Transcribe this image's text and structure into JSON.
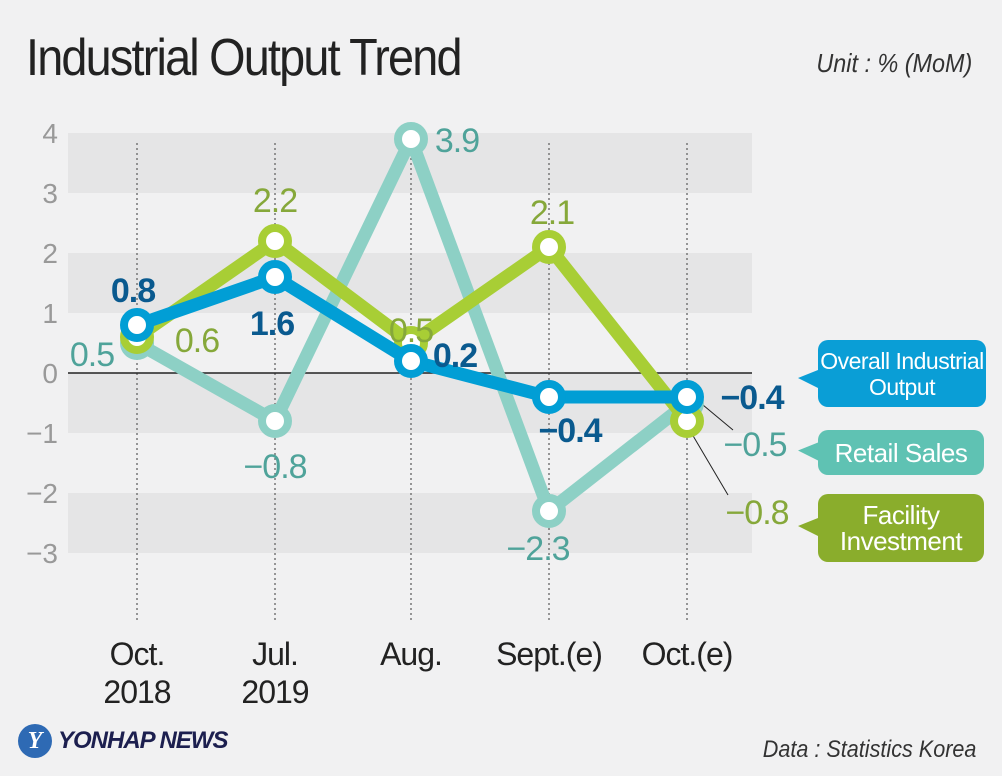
{
  "title": "Industrial Output Trend",
  "unit": "Unit : % (MoM)",
  "source": "Data : Statistics Korea",
  "logo": {
    "text": "YONHAP NEWS",
    "mark": "Y"
  },
  "chart_data": {
    "type": "line",
    "title": "Industrial Output Trend",
    "categories": [
      "Oct.\n2018",
      "Jul.\n2019",
      "Aug.",
      "Sept.(e)",
      "Oct.(e)"
    ],
    "ylim": [
      -3,
      4
    ],
    "yticks": [
      4,
      3,
      2,
      1,
      0,
      -1,
      -2,
      -3
    ],
    "ytick_labels": [
      "4",
      "3",
      "2",
      "1",
      "0",
      "−1",
      "−2",
      "−3"
    ],
    "grid": "alternating horizontal bands",
    "legend": "right (callouts)",
    "series": [
      {
        "name": "Retail Sales",
        "values": [
          0.5,
          -0.8,
          3.9,
          -2.3,
          -0.5
        ],
        "labels": [
          "0.5",
          "−0.8",
          "3.9",
          "−2.3",
          "−0.5"
        ],
        "color": "#8dd0c5",
        "label_color": "#4fa39a",
        "box_color": "#5fc2b3"
      },
      {
        "name": "Facility Investment",
        "values": [
          0.6,
          2.2,
          0.5,
          2.1,
          -0.8
        ],
        "labels": [
          "0.6",
          "2.2",
          "0.5",
          "2.1",
          "−0.8"
        ],
        "color": "#a8ce35",
        "label_color": "#86a83a",
        "box_color": "#8aad2c"
      },
      {
        "name": "Overall Industrial Output",
        "values": [
          0.8,
          1.6,
          0.2,
          -0.4,
          -0.4
        ],
        "labels": [
          "0.8",
          "1.6",
          "0.2",
          "−0.4",
          "−0.4"
        ],
        "color": "#019ed5",
        "label_color": "#0a5a8f",
        "box_color": "#0a9ed6"
      }
    ]
  }
}
